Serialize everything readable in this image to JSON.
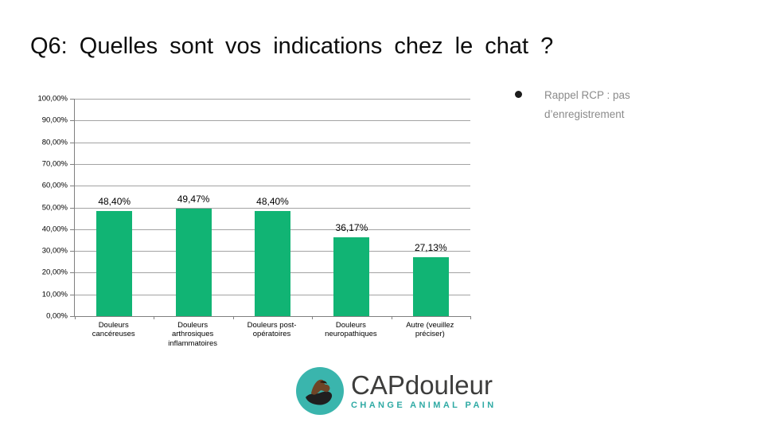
{
  "slide": {
    "title": "Q6: Quelles sont vos indications chez le chat ?"
  },
  "note": {
    "text": "Rappel RCP : pas d’enregistrement"
  },
  "chart_data": {
    "type": "bar",
    "categories": [
      "Douleurs cancéreuses",
      "Douleurs arthrosiques inflammatoires",
      "Douleurs post-opératoires",
      "Douleurs neuropathiques",
      "Autre (veuillez préciser)"
    ],
    "values": [
      48.4,
      49.47,
      48.4,
      36.17,
      27.13
    ],
    "value_labels": [
      "48,40%",
      "49,47%",
      "48,40%",
      "36,17%",
      "27,13%"
    ],
    "title": "",
    "xlabel": "",
    "ylabel": "",
    "ylim": [
      0,
      100
    ],
    "y_tick_step": 10,
    "y_tick_labels": [
      "0,00%",
      "10,00%",
      "20,00%",
      "30,00%",
      "40,00%",
      "50,00%",
      "60,00%",
      "70,00%",
      "80,00%",
      "90,00%",
      "100,00%"
    ],
    "grid": true,
    "legend": false,
    "bar_color": "#11B474",
    "gridline_color": "#a3a3a3",
    "axis_color": "#808080"
  },
  "logo": {
    "brand": "CAPdouleur",
    "tagline": "CHANGE ANIMAL PAIN",
    "teal": "#3AB5AD",
    "dark": "#1f1f1f",
    "brown": "#6e4426"
  }
}
